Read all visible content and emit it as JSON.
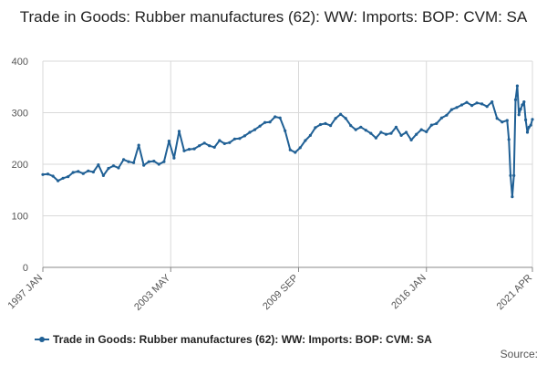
{
  "chart_data": {
    "type": "line",
    "title": "Trade in Goods: Rubber manufactures (62): WW: Imports: BOP: CVM: SA",
    "xlabel": "",
    "ylabel": "",
    "x_range": [
      "1997-01",
      "2021-04"
    ],
    "ylim": [
      0,
      400
    ],
    "y_ticks": [
      0,
      100,
      200,
      300,
      400
    ],
    "x_ticks": [
      {
        "label": "1997 JAN",
        "date": "1997-01"
      },
      {
        "label": "2003 MAY",
        "date": "2003-05"
      },
      {
        "label": "2009 SEP",
        "date": "2009-09"
      },
      {
        "label": "2016 JAN",
        "date": "2016-01"
      },
      {
        "label": "2021 APR",
        "date": "2021-04"
      }
    ],
    "grid": true,
    "legend_position": "bottom",
    "series": [
      {
        "name": "Trade in Goods: Rubber manufactures (62): WW: Imports: BOP: CVM: SA",
        "color": "#206095",
        "points": [
          [
            "1997-01",
            180
          ],
          [
            "1997-04",
            181
          ],
          [
            "1997-07",
            177
          ],
          [
            "1997-10",
            168
          ],
          [
            "1998-01",
            173
          ],
          [
            "1998-04",
            176
          ],
          [
            "1998-07",
            184
          ],
          [
            "1998-10",
            186
          ],
          [
            "1999-01",
            182
          ],
          [
            "1999-04",
            187
          ],
          [
            "1999-07",
            185
          ],
          [
            "1999-10",
            199
          ],
          [
            "2000-01",
            178
          ],
          [
            "2000-04",
            192
          ],
          [
            "2000-07",
            197
          ],
          [
            "2000-10",
            193
          ],
          [
            "2001-01",
            209
          ],
          [
            "2001-04",
            205
          ],
          [
            "2001-07",
            203
          ],
          [
            "2001-10",
            237
          ],
          [
            "2002-01",
            198
          ],
          [
            "2002-04",
            205
          ],
          [
            "2002-07",
            206
          ],
          [
            "2002-10",
            200
          ],
          [
            "2003-01",
            205
          ],
          [
            "2003-04",
            245
          ],
          [
            "2003-07",
            212
          ],
          [
            "2003-10",
            264
          ],
          [
            "2004-01",
            226
          ],
          [
            "2004-04",
            229
          ],
          [
            "2004-07",
            230
          ],
          [
            "2004-10",
            236
          ],
          [
            "2005-01",
            241
          ],
          [
            "2005-04",
            236
          ],
          [
            "2005-07",
            233
          ],
          [
            "2005-10",
            246
          ],
          [
            "2006-01",
            240
          ],
          [
            "2006-04",
            242
          ],
          [
            "2006-07",
            249
          ],
          [
            "2006-10",
            250
          ],
          [
            "2007-01",
            255
          ],
          [
            "2007-04",
            262
          ],
          [
            "2007-07",
            267
          ],
          [
            "2007-10",
            274
          ],
          [
            "2008-01",
            281
          ],
          [
            "2008-04",
            282
          ],
          [
            "2008-07",
            292
          ],
          [
            "2008-10",
            290
          ],
          [
            "2009-01",
            265
          ],
          [
            "2009-04",
            228
          ],
          [
            "2009-07",
            223
          ],
          [
            "2009-10",
            232
          ],
          [
            "2010-01",
            246
          ],
          [
            "2010-04",
            256
          ],
          [
            "2010-07",
            271
          ],
          [
            "2010-10",
            277
          ],
          [
            "2011-01",
            279
          ],
          [
            "2011-04",
            275
          ],
          [
            "2011-07",
            289
          ],
          [
            "2011-10",
            297
          ],
          [
            "2012-01",
            289
          ],
          [
            "2012-04",
            275
          ],
          [
            "2012-07",
            267
          ],
          [
            "2012-10",
            272
          ],
          [
            "2013-01",
            266
          ],
          [
            "2013-04",
            260
          ],
          [
            "2013-07",
            251
          ],
          [
            "2013-10",
            262
          ],
          [
            "2014-01",
            258
          ],
          [
            "2014-04",
            260
          ],
          [
            "2014-07",
            272
          ],
          [
            "2014-10",
            256
          ],
          [
            "2015-01",
            262
          ],
          [
            "2015-04",
            247
          ],
          [
            "2015-07",
            258
          ],
          [
            "2015-10",
            267
          ],
          [
            "2016-01",
            263
          ],
          [
            "2016-04",
            276
          ],
          [
            "2016-07",
            279
          ],
          [
            "2016-10",
            290
          ],
          [
            "2017-01",
            295
          ],
          [
            "2017-04",
            306
          ],
          [
            "2017-07",
            310
          ],
          [
            "2017-10",
            315
          ],
          [
            "2018-01",
            320
          ],
          [
            "2018-04",
            314
          ],
          [
            "2018-07",
            319
          ],
          [
            "2018-10",
            317
          ],
          [
            "2019-01",
            312
          ],
          [
            "2019-04",
            321
          ],
          [
            "2019-07",
            289
          ],
          [
            "2019-10",
            282
          ],
          [
            "2020-01",
            285
          ],
          [
            "2020-02",
            248
          ],
          [
            "2020-03",
            178
          ],
          [
            "2020-04",
            137
          ],
          [
            "2020-05",
            178
          ],
          [
            "2020-06",
            325
          ],
          [
            "2020-07",
            352
          ],
          [
            "2020-08",
            296
          ],
          [
            "2020-09",
            307
          ],
          [
            "2020-10",
            315
          ],
          [
            "2020-11",
            321
          ],
          [
            "2020-12",
            286
          ],
          [
            "2021-01",
            262
          ],
          [
            "2021-02",
            272
          ],
          [
            "2021-03",
            276
          ],
          [
            "2021-04",
            287
          ]
        ]
      }
    ]
  },
  "legend_text": "Trade in Goods: Rubber manufactures (62): WW: Imports: BOP: CVM: SA",
  "source_text": "Source:"
}
